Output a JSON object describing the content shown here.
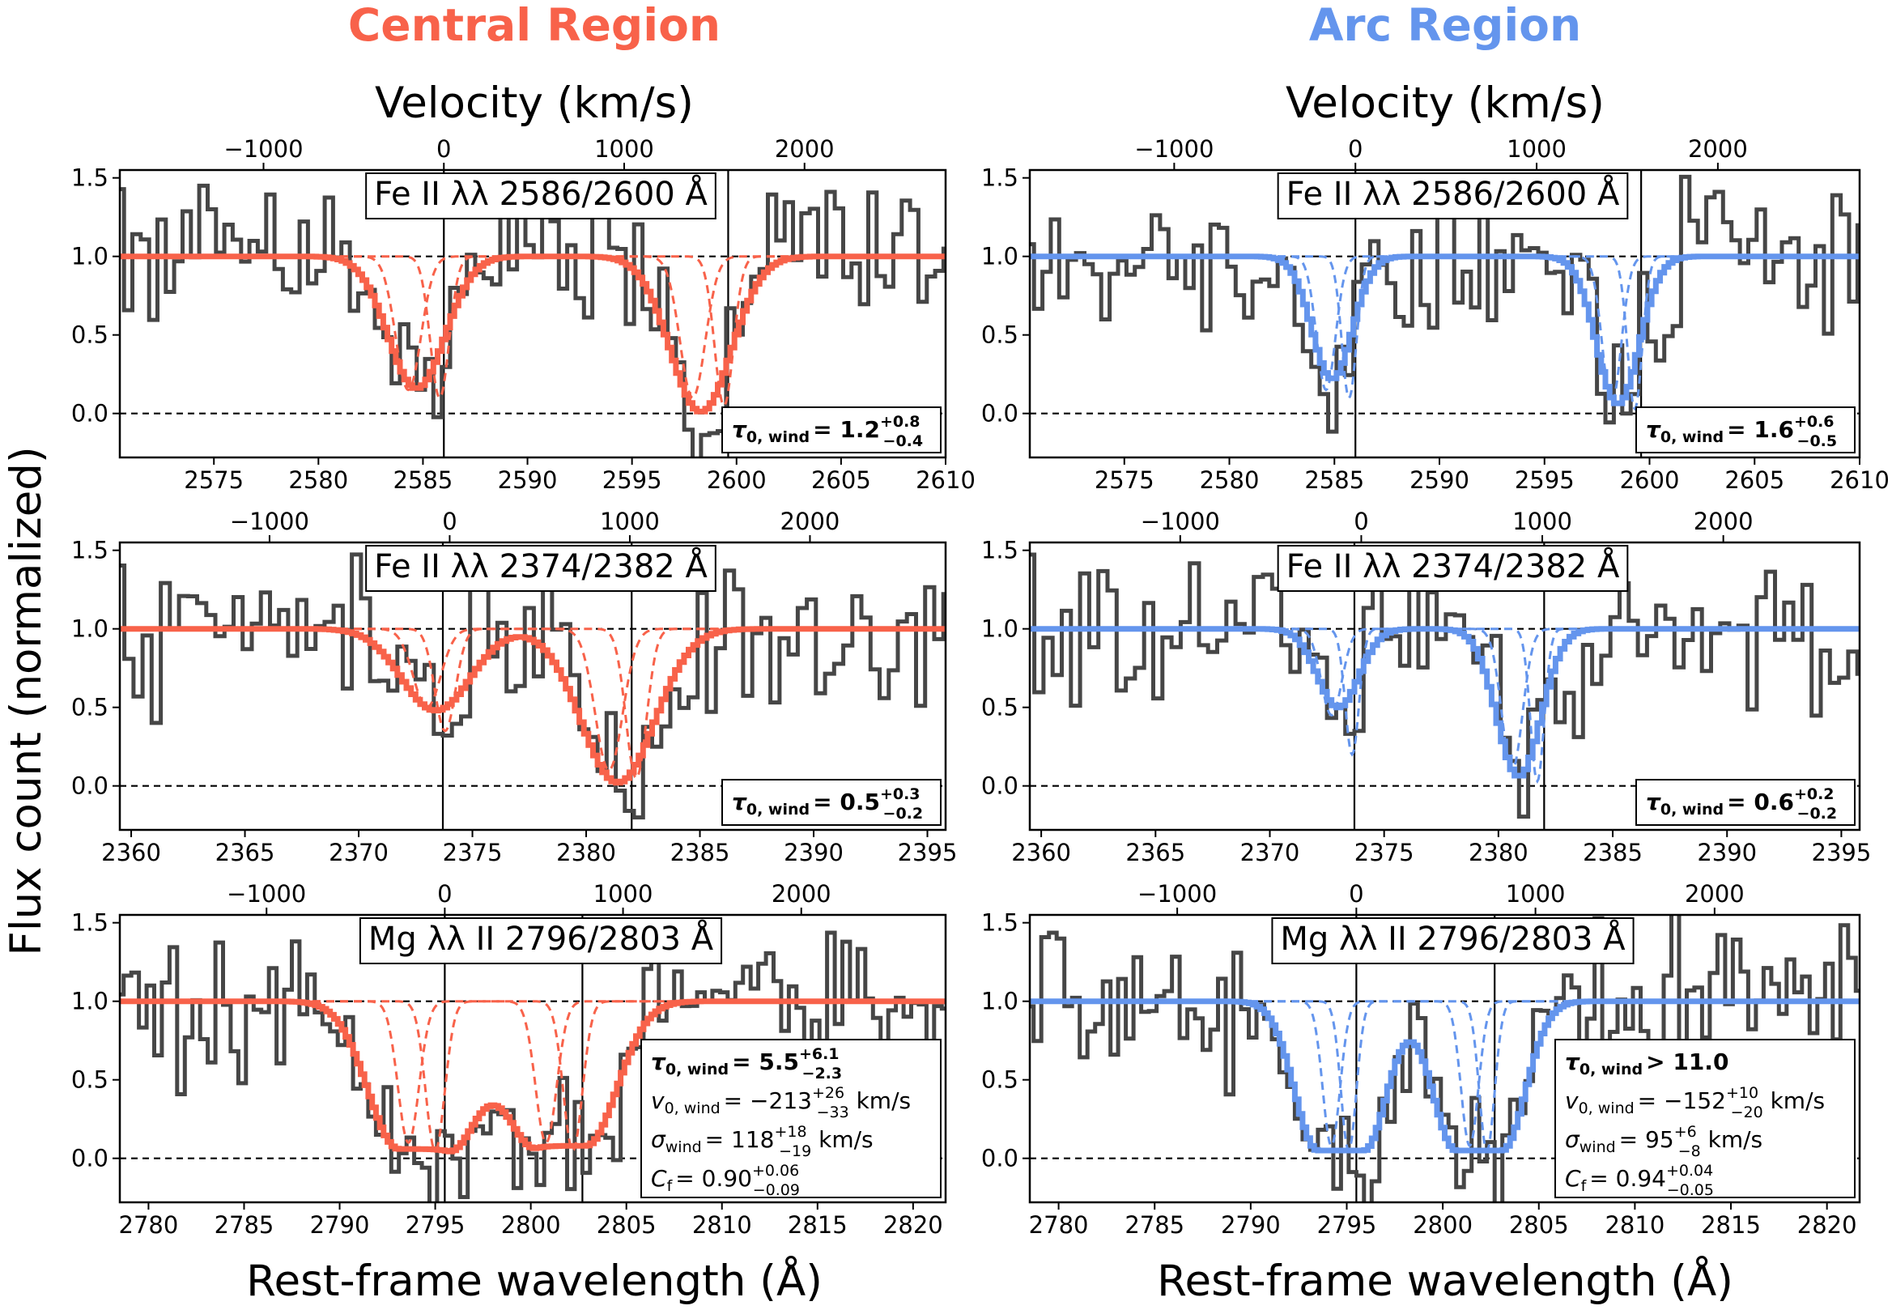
{
  "figure": {
    "column_titles": [
      "Central Region",
      "Arc Region"
    ],
    "ylabel": "Flux count (normalized)",
    "xlabel": "Rest-frame wavelength (Å)",
    "top_xlabel": "Velocity (km/s)"
  },
  "colors": {
    "central": "#F8624A",
    "arc": "#6495ED",
    "data": "#464646",
    "axis": "#000000"
  },
  "chart_data": [
    {
      "type": "line",
      "panel": "central-fe2600",
      "title": "Fe II λλ 2586/2600 Å",
      "xlim": [
        2570.5,
        2610
      ],
      "ylim": [
        -0.28,
        1.55
      ],
      "xticks": [
        2575,
        2580,
        2585,
        2590,
        2595,
        2600,
        2605,
        2610
      ],
      "yticks": [
        0.0,
        0.5,
        1.0,
        1.5
      ],
      "vel_ref": 2586.0,
      "vel_ticks": [
        -1000,
        0,
        1000,
        2000
      ],
      "lines_at": [
        2586.0,
        2599.6
      ],
      "box": {
        "label": "τ",
        "sub": "0, wind",
        "rel": "= ",
        "val": "1.2",
        "sup": "+0.8",
        "subv": "−0.4",
        "extra": []
      },
      "model": {
        "fill": 1,
        "seed": 11,
        "absorbers": [
          {
            "c": 2584.6,
            "s": 1.35,
            "d": 0.84
          },
          {
            "c": 2598.2,
            "s": 1.45,
            "d": 0.99
          }
        ],
        "comps": [
          [
            {
              "c": 2585.8,
              "s": 0.45,
              "d": 0.9
            },
            {
              "c": 2599.4,
              "s": 0.45,
              "d": 0.95
            }
          ],
          [
            {
              "c": 2584.3,
              "s": 0.6,
              "d": 0.85
            },
            {
              "c": 2597.9,
              "s": 0.6,
              "d": 0.9
            }
          ]
        ]
      }
    },
    {
      "type": "line",
      "panel": "arc-fe2600",
      "title": "Fe II λλ 2586/2600 Å",
      "xlim": [
        2570.5,
        2610
      ],
      "ylim": [
        -0.28,
        1.55
      ],
      "xticks": [
        2575,
        2580,
        2585,
        2590,
        2595,
        2600,
        2605,
        2610
      ],
      "yticks": [
        0.0,
        0.5,
        1.0,
        1.5
      ],
      "vel_ref": 2586.0,
      "vel_ticks": [
        -1000,
        0,
        1000,
        2000
      ],
      "lines_at": [
        2586.0,
        2599.6
      ],
      "box": {
        "label": "τ",
        "sub": "0, wind",
        "rel": "= ",
        "val": "1.6",
        "sup": "+0.6",
        "subv": "−0.5",
        "extra": []
      },
      "model": {
        "fill": 2,
        "seed": 23,
        "absorbers": [
          {
            "c": 2584.8,
            "s": 0.95,
            "d": 0.78
          },
          {
            "c": 2598.4,
            "s": 1.0,
            "d": 0.94
          }
        ],
        "comps": [
          [
            {
              "c": 2585.7,
              "s": 0.35,
              "d": 0.9
            },
            {
              "c": 2599.3,
              "s": 0.35,
              "d": 0.97
            }
          ],
          [
            {
              "c": 2584.6,
              "s": 0.45,
              "d": 0.85
            },
            {
              "c": 2598.2,
              "s": 0.45,
              "d": 0.93
            }
          ]
        ]
      }
    },
    {
      "type": "line",
      "panel": "central-fe2382",
      "title": "Fe II λλ 2374/2382 Å",
      "xlim": [
        2359.5,
        2395.8
      ],
      "ylim": [
        -0.28,
        1.55
      ],
      "xticks": [
        2360,
        2365,
        2370,
        2375,
        2380,
        2385,
        2390,
        2395
      ],
      "yticks": [
        0.0,
        0.5,
        1.0,
        1.5
      ],
      "vel_ref": 2374.0,
      "vel_ticks": [
        -1000,
        0,
        1000,
        2000
      ],
      "lines_at": [
        2373.7,
        2382.0
      ],
      "box": {
        "label": "τ",
        "sub": "0, wind",
        "rel": "= ",
        "val": "0.5",
        "sup": "+0.3",
        "subv": "−0.2",
        "extra": []
      },
      "model": {
        "fill": 1,
        "seed": 37,
        "absorbers": [
          {
            "c": 2373.3,
            "s": 1.5,
            "d": 0.52
          },
          {
            "c": 2381.3,
            "s": 1.6,
            "d": 0.98
          }
        ],
        "comps": [
          [
            {
              "c": 2373.8,
              "s": 0.45,
              "d": 0.65
            },
            {
              "c": 2382.2,
              "s": 0.45,
              "d": 0.95
            }
          ],
          [
            {
              "c": 2373.0,
              "s": 0.6,
              "d": 0.5
            },
            {
              "c": 2381.0,
              "s": 0.6,
              "d": 0.9
            }
          ]
        ]
      }
    },
    {
      "type": "line",
      "panel": "arc-fe2382",
      "title": "Fe II λλ 2374/2382 Å",
      "xlim": [
        2359.5,
        2395.8
      ],
      "ylim": [
        -0.28,
        1.55
      ],
      "xticks": [
        2360,
        2365,
        2370,
        2375,
        2380,
        2385,
        2390,
        2395
      ],
      "yticks": [
        0.0,
        0.5,
        1.0,
        1.5
      ],
      "vel_ref": 2374.0,
      "vel_ticks": [
        -1000,
        0,
        1000,
        2000
      ],
      "lines_at": [
        2373.7,
        2382.0
      ],
      "box": {
        "label": "τ",
        "sub": "0, wind",
        "rel": "= ",
        "val": "0.6",
        "sup": "+0.2",
        "subv": "−0.2",
        "extra": []
      },
      "model": {
        "fill": 2,
        "seed": 41,
        "absorbers": [
          {
            "c": 2372.9,
            "s": 0.9,
            "d": 0.5
          },
          {
            "c": 2380.8,
            "s": 0.95,
            "d": 0.94
          }
        ],
        "comps": [
          [
            {
              "c": 2373.6,
              "s": 0.3,
              "d": 0.8
            },
            {
              "c": 2381.7,
              "s": 0.3,
              "d": 0.97
            }
          ],
          [
            {
              "c": 2372.7,
              "s": 0.45,
              "d": 0.55
            },
            {
              "c": 2380.6,
              "s": 0.45,
              "d": 0.9
            }
          ]
        ]
      }
    },
    {
      "type": "line",
      "panel": "central-mg2",
      "title": "Mg λλ II 2796/2803 Å",
      "xlim": [
        2778.5,
        2821.7
      ],
      "ylim": [
        -0.28,
        1.55
      ],
      "xticks": [
        2780,
        2785,
        2790,
        2795,
        2800,
        2805,
        2810,
        2815,
        2820
      ],
      "yticks": [
        0.0,
        0.5,
        1.0,
        1.5
      ],
      "vel_ref": 2795.5,
      "vel_ticks": [
        -1000,
        0,
        1000,
        2000
      ],
      "lines_at": [
        2795.5,
        2802.7
      ],
      "box": {
        "label": "τ",
        "sub": "0, wind",
        "rel": "= ",
        "val": "5.5",
        "sup": "+6.1",
        "subv": "−2.3",
        "extra": [
          {
            "label": "v",
            "sub": "0, wind",
            "rel": "= ",
            "val": "−213",
            "sup": "+26",
            "subv": "−33",
            "unit": " km/s"
          },
          {
            "label": "σ",
            "sub": "wind",
            "rel": "= ",
            "val": "118",
            "sup": "+18",
            "subv": "−19",
            "unit": " km/s"
          },
          {
            "label": "C",
            "sub": "f",
            "rel": "= ",
            "val": "0.90",
            "sup": "+0.06",
            "subv": "−0.09",
            "unit": ""
          }
        ]
      },
      "model": {
        "fill": 1,
        "seed": 53,
        "absorbers": [
          {
            "c": 2794.3,
            "s": 1.6,
            "d": 0.94,
            "flat": 1.3
          },
          {
            "c": 2801.5,
            "s": 1.6,
            "d": 0.92,
            "flat": 1.3
          }
        ],
        "comps": [
          [
            {
              "c": 2795.0,
              "s": 0.5,
              "d": 0.95
            },
            {
              "c": 2802.2,
              "s": 0.5,
              "d": 0.95
            }
          ],
          [
            {
              "c": 2793.6,
              "s": 0.55,
              "d": 0.9
            },
            {
              "c": 2800.8,
              "s": 0.55,
              "d": 0.9
            }
          ]
        ]
      }
    },
    {
      "type": "line",
      "panel": "arc-mg2",
      "title": "Mg λλ II 2796/2803 Å",
      "xlim": [
        2778.5,
        2821.7
      ],
      "ylim": [
        -0.28,
        1.55
      ],
      "xticks": [
        2780,
        2785,
        2790,
        2795,
        2800,
        2805,
        2810,
        2815,
        2820
      ],
      "yticks": [
        0.0,
        0.5,
        1.0,
        1.5
      ],
      "vel_ref": 2795.5,
      "vel_ticks": [
        -1000,
        0,
        1000,
        2000
      ],
      "lines_at": [
        2795.5,
        2802.7
      ],
      "box": {
        "label": "τ",
        "sub": "0, wind",
        "rel": "> ",
        "val": "11.0",
        "sup": "",
        "subv": "",
        "extra": [
          {
            "label": "v",
            "sub": "0, wind",
            "rel": "= ",
            "val": "−152",
            "sup": "+10",
            "subv": "−20",
            "unit": " km/s"
          },
          {
            "label": "σ",
            "sub": "wind",
            "rel": "= ",
            "val": "95",
            "sup": "+6",
            "subv": "−8",
            "unit": " km/s"
          },
          {
            "label": "C",
            "sub": "f",
            "rel": "= ",
            "val": "0.94",
            "sup": "+0.04",
            "subv": "−0.05",
            "unit": ""
          }
        ]
      },
      "model": {
        "fill": 2,
        "seed": 67,
        "absorbers": [
          {
            "c": 2794.6,
            "s": 1.2,
            "d": 0.95,
            "flat": 1.2
          },
          {
            "c": 2801.8,
            "s": 1.2,
            "d": 0.95,
            "flat": 1.2
          }
        ],
        "comps": [
          [
            {
              "c": 2795.1,
              "s": 0.4,
              "d": 0.95
            },
            {
              "c": 2802.3,
              "s": 0.4,
              "d": 0.95
            }
          ],
          [
            {
              "c": 2794.2,
              "s": 0.45,
              "d": 0.92
            },
            {
              "c": 2801.4,
              "s": 0.45,
              "d": 0.92
            }
          ]
        ]
      }
    }
  ]
}
